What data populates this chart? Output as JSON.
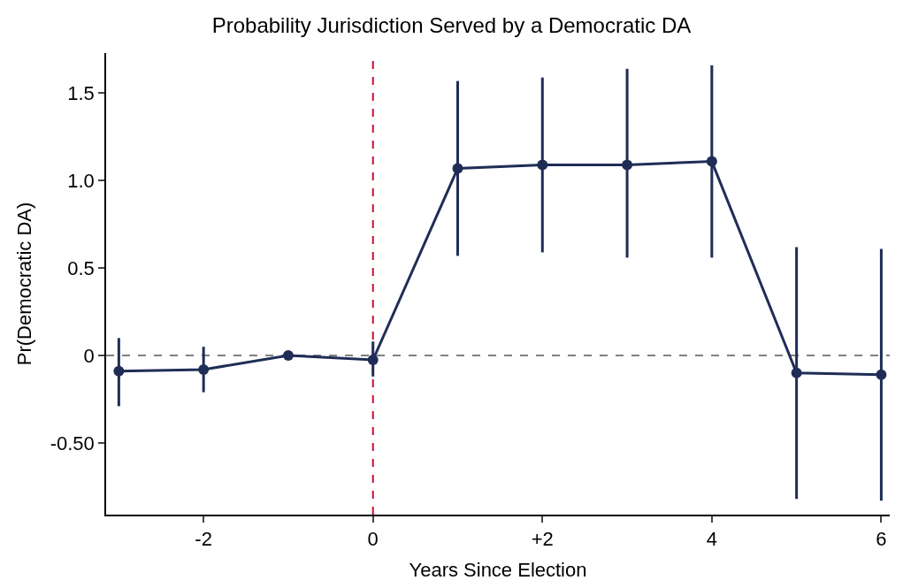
{
  "chart_data": {
    "type": "line",
    "title": "Probability Jurisdiction Served by a Democratic DA",
    "xlabel": "Years Since Election",
    "ylabel": "Pr(Democratic DA)",
    "x": [
      -3,
      -2,
      -1,
      0,
      1,
      2,
      3,
      4,
      5,
      6
    ],
    "series": [
      {
        "color": "#1f2d56",
        "values": [
          -0.09,
          -0.08,
          0,
          -0.025,
          1.07,
          1.09,
          1.09,
          1.11,
          -0.1,
          -0.11
        ],
        "errors": [
          [
            -0.29,
            0.1
          ],
          [
            -0.21,
            0.05
          ],
          null,
          [
            -0.12,
            0.08
          ],
          [
            0.57,
            1.57
          ],
          [
            0.59,
            1.59
          ],
          [
            0.56,
            1.64
          ],
          [
            0.56,
            1.66
          ],
          [
            -0.82,
            0.62
          ],
          [
            -0.83,
            0.61
          ]
        ]
      }
    ],
    "xlim": [
      -3.15,
      6.1
    ],
    "ylim": [
      -0.91,
      1.73
    ],
    "xticks": [
      -2,
      0,
      {
        "value": 2,
        "label": "+2"
      },
      4,
      6
    ],
    "yticks": [
      {
        "value": -0.5,
        "label": "-0.50"
      },
      0,
      0.5,
      {
        "value": 1.0,
        "label": "1.0"
      },
      1.5
    ],
    "ref_lines": [
      {
        "axis": "y",
        "value": 0,
        "color": "#808080",
        "line_style": "dashed"
      },
      {
        "axis": "x",
        "value": 0,
        "color": "#c8102e",
        "line_style": "dashed"
      }
    ],
    "marker": "circle",
    "line_style": "solid"
  }
}
